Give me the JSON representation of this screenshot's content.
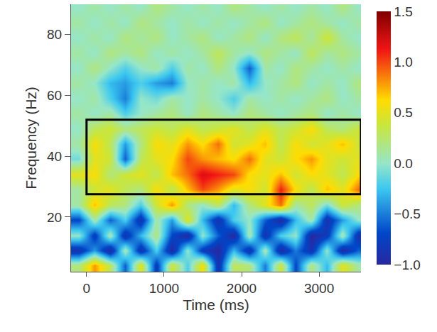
{
  "chart_data": {
    "type": "heatmap",
    "x_label": "Time (ms)",
    "y_label": "Frequency (Hz)",
    "x": [
      -100,
      100,
      300,
      500,
      700,
      900,
      1100,
      1300,
      1500,
      1700,
      1900,
      2100,
      2300,
      2500,
      2700,
      2900,
      3100,
      3300,
      3500
    ],
    "y": [
      4,
      9,
      14,
      19,
      24,
      29,
      34,
      39,
      44,
      49,
      54,
      59,
      64,
      69,
      74,
      79,
      84,
      89
    ],
    "cells": [
      [
        0.2,
        0.8,
        0.3,
        -0.6,
        0.5,
        -0.8,
        0.4,
        -0.2,
        0.6,
        -0.9,
        0.3,
        0.2,
        -0.5,
        0.4,
        -0.7,
        0.2,
        -0.3,
        0.5,
        0.1
      ],
      [
        -0.9,
        -0.4,
        -1.0,
        0.1,
        -0.9,
        -0.2,
        -1.0,
        0.0,
        -0.8,
        -1.0,
        -0.3,
        -0.9,
        0.1,
        -1.0,
        -0.5,
        -0.9,
        0.0,
        -1.0,
        -0.6
      ],
      [
        0.0,
        -0.8,
        0.1,
        -0.9,
        -0.3,
        0.2,
        -0.7,
        -1.0,
        0.0,
        -0.6,
        -1.0,
        0.1,
        -0.9,
        -0.2,
        0.0,
        -1.0,
        -0.8,
        0.1,
        -0.9
      ],
      [
        -0.7,
        0.1,
        -0.6,
        -0.2,
        -0.9,
        0.1,
        -0.4,
        0.5,
        -0.3,
        -0.9,
        -0.2,
        0.0,
        -0.6,
        -1.0,
        -0.3,
        0.1,
        -0.9,
        -0.4,
        0.0
      ],
      [
        0.1,
        0.7,
        0.3,
        0.2,
        -0.2,
        0.4,
        0.8,
        0.2,
        0.0,
        0.3,
        -0.3,
        0.2,
        0.5,
        0.9,
        0.1,
        0.3,
        -0.1,
        0.4,
        0.2
      ],
      [
        0.1,
        0.4,
        0.5,
        0.3,
        0.2,
        0.6,
        0.3,
        0.7,
        1.0,
        0.8,
        0.5,
        0.6,
        0.4,
        1.1,
        0.6,
        0.3,
        0.7,
        0.5,
        0.9
      ],
      [
        0.5,
        0.6,
        0.2,
        0.4,
        0.5,
        0.3,
        0.7,
        0.9,
        1.2,
        1.1,
        1.0,
        0.6,
        0.5,
        0.7,
        0.4,
        0.6,
        0.5,
        0.3,
        0.6
      ],
      [
        -0.1,
        0.5,
        0.4,
        -0.6,
        0.3,
        0.5,
        0.6,
        1.0,
        0.8,
        0.7,
        0.6,
        0.9,
        0.5,
        0.4,
        0.6,
        0.8,
        0.5,
        0.4,
        0.5
      ],
      [
        0.1,
        0.6,
        0.3,
        -0.4,
        0.2,
        0.6,
        0.5,
        0.8,
        0.6,
        0.9,
        0.4,
        0.5,
        0.7,
        0.3,
        0.6,
        0.4,
        0.5,
        0.7,
        0.4
      ],
      [
        0.0,
        0.3,
        0.4,
        0.2,
        0.3,
        0.4,
        0.3,
        0.5,
        0.3,
        0.4,
        0.5,
        0.3,
        0.5,
        0.3,
        0.4,
        0.6,
        0.3,
        0.2,
        0.4
      ],
      [
        0.1,
        0.0,
        0.1,
        -0.2,
        0.0,
        0.1,
        0.2,
        0.0,
        0.2,
        0.1,
        0.0,
        0.2,
        0.1,
        0.0,
        0.1,
        0.2,
        0.0,
        0.1,
        0.0
      ],
      [
        0.0,
        0.1,
        -0.2,
        -0.5,
        0.0,
        -0.1,
        0.1,
        0.0,
        0.1,
        0.0,
        -0.2,
        0.1,
        0.0,
        0.1,
        0.0,
        0.1,
        0.2,
        0.0,
        0.1
      ],
      [
        0.1,
        0.0,
        -0.3,
        -0.4,
        -0.2,
        -0.4,
        -0.5,
        0.0,
        0.1,
        0.0,
        0.1,
        -0.3,
        0.0,
        0.1,
        0.2,
        0.0,
        0.1,
        0.0,
        0.2
      ],
      [
        0.0,
        0.2,
        0.0,
        -0.2,
        0.0,
        0.1,
        -0.2,
        0.1,
        0.0,
        0.2,
        0.0,
        -0.6,
        0.1,
        0.0,
        0.2,
        0.1,
        0.0,
        0.1,
        0.0
      ],
      [
        0.1,
        0.0,
        0.2,
        0.1,
        0.2,
        0.0,
        0.1,
        0.0,
        0.1,
        0.3,
        0.1,
        0.0,
        0.2,
        0.1,
        0.0,
        0.3,
        0.1,
        0.2,
        0.1
      ],
      [
        0.0,
        0.1,
        0.0,
        0.2,
        0.1,
        0.2,
        0.0,
        0.1,
        0.2,
        0.0,
        0.1,
        0.2,
        0.0,
        0.2,
        0.3,
        0.1,
        0.4,
        0.1,
        0.0
      ],
      [
        0.1,
        0.0,
        0.1,
        0.0,
        0.2,
        0.1,
        0.0,
        0.1,
        0.0,
        0.1,
        0.0,
        0.1,
        0.2,
        0.0,
        0.1,
        0.2,
        0.1,
        0.0,
        0.1
      ],
      [
        0.0,
        0.1,
        0.0,
        0.1,
        0.0,
        0.2,
        0.1,
        0.0,
        0.1,
        0.0,
        0.2,
        0.1,
        0.0,
        0.1,
        0.0,
        0.1,
        0.0,
        0.2,
        0.0
      ]
    ],
    "xlim": [
      -200,
      3540
    ],
    "xticks": [
      0,
      1000,
      2000,
      3000
    ],
    "ylim": [
      2,
      90
    ],
    "yticks": [
      20,
      40,
      60,
      80
    ],
    "color_range": [
      -1,
      1.5
    ],
    "color_ticks": [
      {
        "value": -1,
        "label": "−1.0"
      },
      {
        "value": -0.5,
        "label": "−0.5"
      },
      {
        "value": 0,
        "label": "0.0"
      },
      0.5,
      {
        "value": 1,
        "label": "1.0"
      },
      {
        "value": 1.5,
        "label": "1.5"
      }
    ],
    "highlight_box": {
      "x": [
        0,
        3540
      ],
      "y": [
        27.5,
        52
      ]
    }
  }
}
